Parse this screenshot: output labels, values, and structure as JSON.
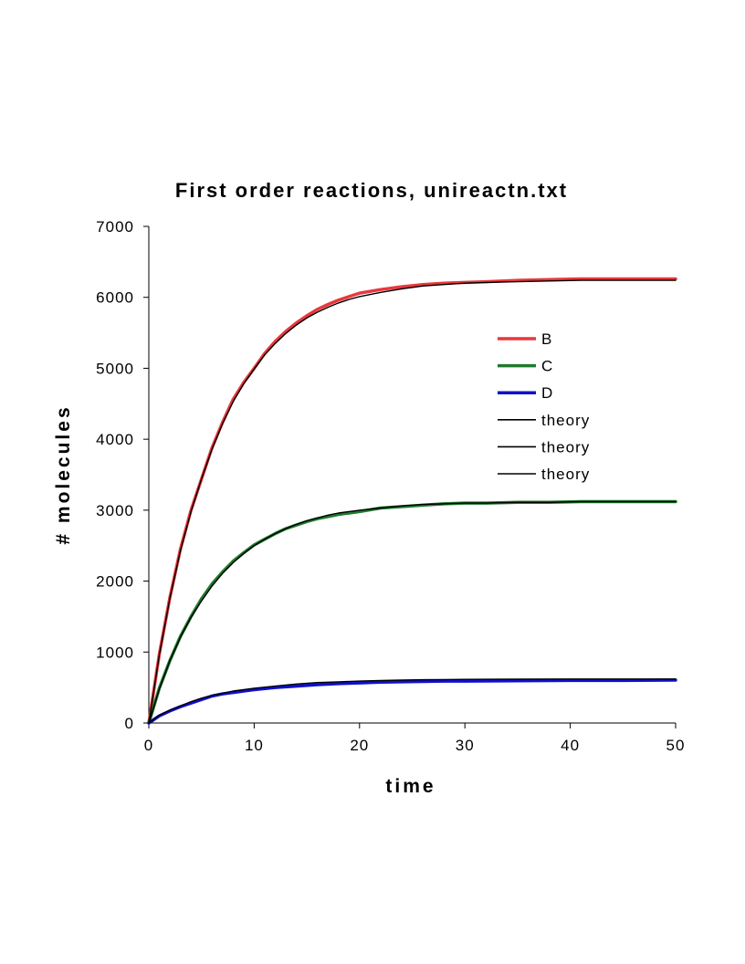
{
  "chart_data": {
    "type": "line",
    "title": "First order reactions, unireactn.txt",
    "xlabel": "time",
    "ylabel": "# molecules",
    "xlim": [
      0,
      50
    ],
    "ylim": [
      0,
      7000
    ],
    "xticks": [
      "0",
      "10",
      "20",
      "30",
      "40",
      "50"
    ],
    "yticks": [
      "0",
      "1000",
      "2000",
      "3000",
      "4000",
      "5000",
      "6000",
      "7000"
    ],
    "grid": false,
    "legend_position": "right",
    "series": [
      {
        "name": "B",
        "color": "#e8383d",
        "x": [
          0,
          1,
          2,
          3,
          4,
          5,
          6,
          7,
          8,
          9,
          10,
          11,
          12,
          13,
          14,
          15,
          16,
          17,
          18,
          19,
          20,
          22,
          24,
          26,
          28,
          30,
          32,
          35,
          38,
          41,
          44,
          47,
          50
        ],
        "y": [
          0,
          970,
          1770,
          2450,
          3000,
          3440,
          3880,
          4240,
          4560,
          4800,
          5000,
          5210,
          5380,
          5520,
          5640,
          5740,
          5830,
          5900,
          5960,
          6010,
          6060,
          6110,
          6150,
          6180,
          6200,
          6210,
          6220,
          6240,
          6250,
          6260,
          6260,
          6260,
          6260
        ]
      },
      {
        "name": "C",
        "color": "#1f7a2e",
        "x": [
          0,
          1,
          2,
          3,
          4,
          5,
          6,
          7,
          8,
          9,
          10,
          11,
          12,
          13,
          14,
          15,
          16,
          17,
          18,
          19,
          20,
          22,
          24,
          26,
          28,
          30,
          32,
          35,
          38,
          41,
          44,
          47,
          50
        ],
        "y": [
          0,
          490,
          880,
          1220,
          1500,
          1750,
          1960,
          2130,
          2280,
          2400,
          2510,
          2590,
          2670,
          2740,
          2790,
          2840,
          2880,
          2910,
          2940,
          2960,
          2980,
          3030,
          3050,
          3070,
          3090,
          3100,
          3100,
          3110,
          3110,
          3120,
          3120,
          3120,
          3120
        ]
      },
      {
        "name": "D",
        "color": "#1010cc",
        "x": [
          0,
          1,
          2,
          3,
          4,
          5,
          6,
          7,
          8,
          9,
          10,
          12,
          14,
          16,
          18,
          20,
          22,
          24,
          26,
          28,
          30,
          35,
          40,
          45,
          50
        ],
        "y": [
          0,
          100,
          170,
          230,
          280,
          330,
          380,
          410,
          430,
          450,
          470,
          500,
          520,
          540,
          555,
          565,
          575,
          580,
          585,
          590,
          590,
          595,
          600,
          600,
          605
        ]
      },
      {
        "name": "theory",
        "color": "#000000",
        "x": [
          0,
          1,
          2,
          3,
          4,
          5,
          6,
          7,
          8,
          9,
          10,
          11,
          12,
          13,
          14,
          15,
          16,
          17,
          18,
          19,
          20,
          22,
          24,
          26,
          28,
          30,
          32,
          35,
          38,
          41,
          44,
          47,
          50
        ],
        "y": [
          0,
          960,
          1760,
          2430,
          2980,
          3440,
          3860,
          4220,
          4530,
          4780,
          4990,
          5190,
          5350,
          5490,
          5610,
          5710,
          5790,
          5860,
          5920,
          5970,
          6010,
          6070,
          6120,
          6160,
          6180,
          6200,
          6210,
          6220,
          6230,
          6240,
          6240,
          6240,
          6240
        ]
      },
      {
        "name": "theory",
        "color": "#000000",
        "x": [
          0,
          1,
          2,
          3,
          4,
          5,
          6,
          7,
          8,
          9,
          10,
          11,
          12,
          13,
          14,
          15,
          16,
          17,
          18,
          19,
          20,
          22,
          24,
          26,
          28,
          30,
          32,
          35,
          38,
          41,
          44,
          47,
          50
        ],
        "y": [
          0,
          480,
          880,
          1210,
          1490,
          1720,
          1930,
          2110,
          2260,
          2390,
          2500,
          2590,
          2670,
          2740,
          2800,
          2850,
          2890,
          2930,
          2960,
          2980,
          3000,
          3030,
          3060,
          3080,
          3090,
          3100,
          3100,
          3110,
          3110,
          3120,
          3120,
          3120,
          3120
        ]
      },
      {
        "name": "theory",
        "color": "#000000",
        "x": [
          0,
          1,
          2,
          3,
          4,
          5,
          6,
          7,
          8,
          9,
          10,
          12,
          14,
          16,
          18,
          20,
          22,
          24,
          26,
          28,
          30,
          35,
          40,
          45,
          50
        ],
        "y": [
          0,
          110,
          180,
          240,
          300,
          350,
          390,
          420,
          450,
          470,
          490,
          520,
          550,
          570,
          580,
          590,
          600,
          605,
          610,
          612,
          615,
          618,
          620,
          620,
          620
        ]
      }
    ]
  }
}
